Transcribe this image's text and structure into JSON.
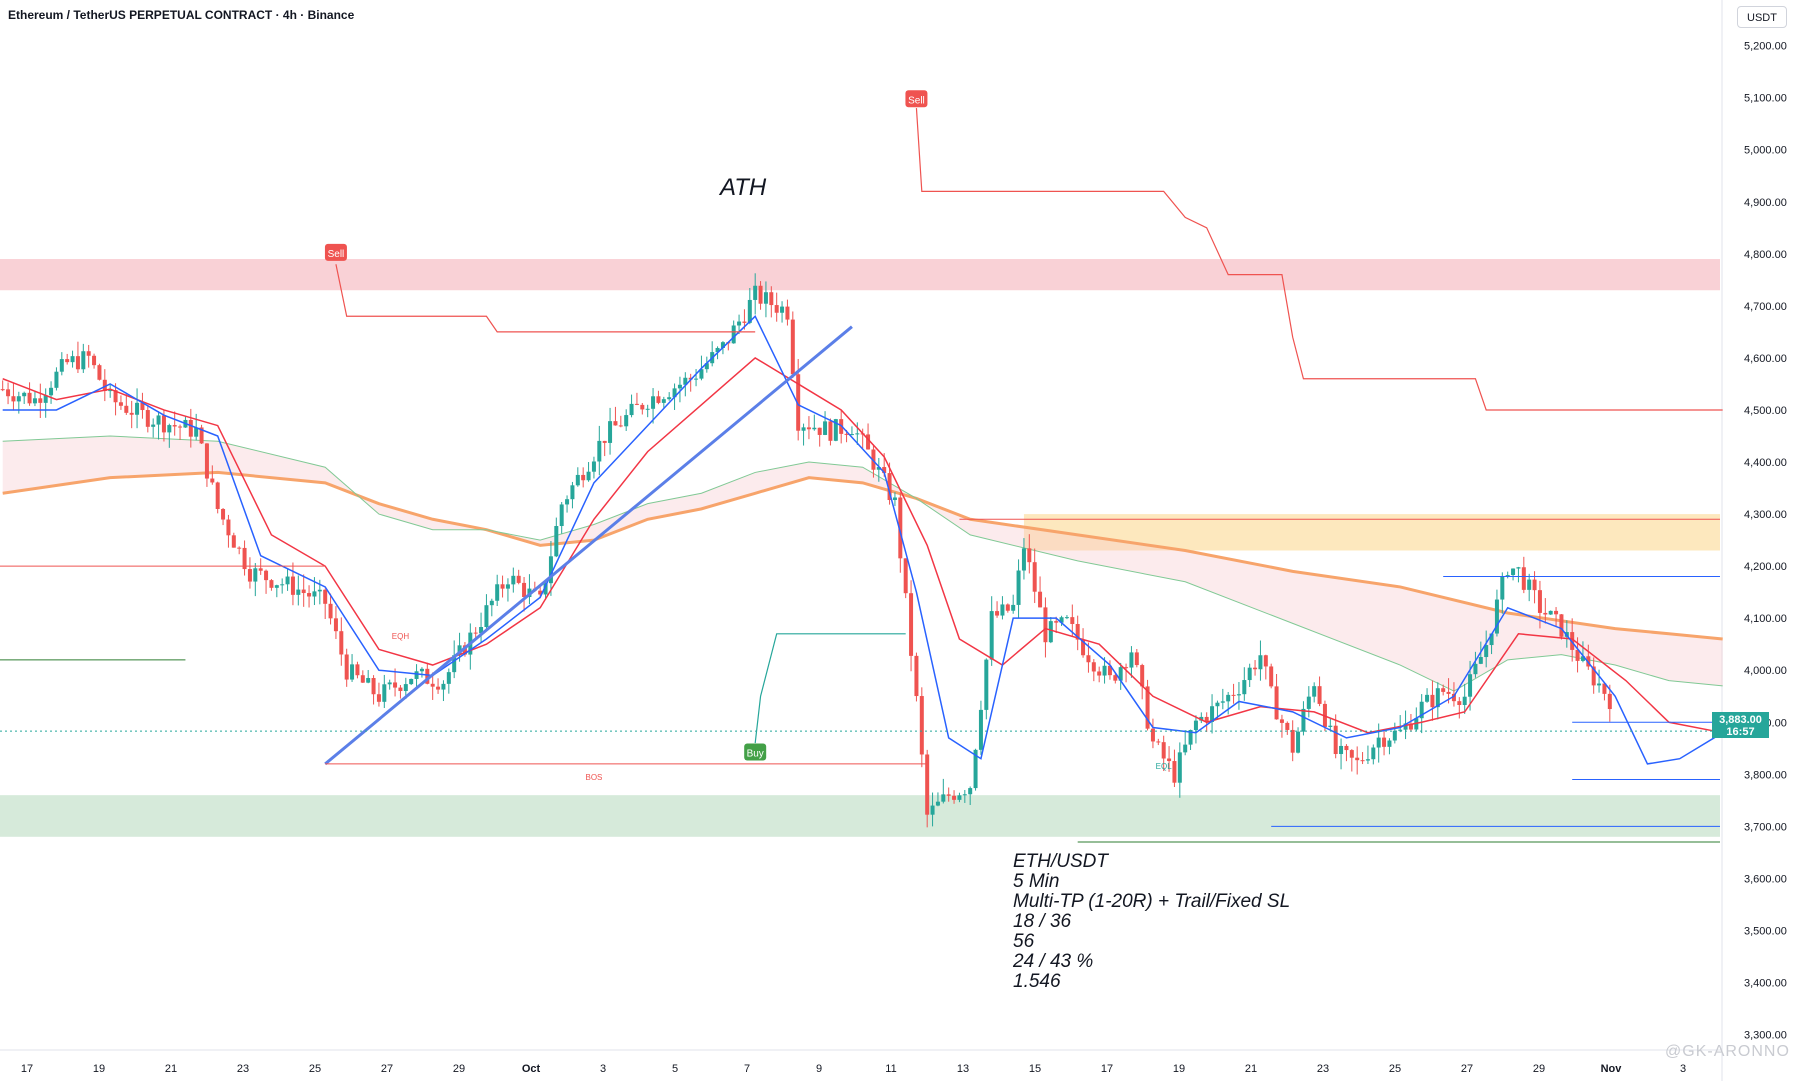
{
  "header": {
    "title": "Ethereum / TetherUS PERPETUAL CONTRACT · 4h · Binance",
    "currency": "USDT"
  },
  "annotations": {
    "ath": "ATH",
    "sell1": "Sell",
    "sell2": "Sell",
    "buy": "Buy",
    "bos": "BOS",
    "eqh": "EQH",
    "eql": "EQL"
  },
  "price_badge": {
    "price": "3,883.00",
    "time": "16:57"
  },
  "stats": {
    "line1": "ETH/USDT",
    "line2": "5 Min",
    "line3": "Multi-TP (1-20R) + Trail/Fixed SL",
    "line4": "18 / 36",
    "line5": "56",
    "line6": "24 / 43 %",
    "line7": "1.546"
  },
  "watermark": "@GK-ARONNO",
  "colors": {
    "up": "#26a69a",
    "down": "#ef5350",
    "ema_fast": "#2962ff",
    "ema_slow": "#f23645",
    "ma_long": "#f7a46b",
    "ma_green": "#81c995",
    "trendline": "#5b7fe8",
    "supply_zone": "#f8c9cf",
    "demand_zone": "#cfe6d4",
    "orange_zone": "#fde4b3"
  },
  "chart_data": {
    "type": "candlestick",
    "y_axis": {
      "ticks": [
        "5,200.00",
        "5,100.00",
        "5,000.00",
        "4,900.00",
        "4,800.00",
        "4,700.00",
        "4,600.00",
        "4,500.00",
        "4,400.00",
        "4,300.00",
        "4,200.00",
        "4,100.00",
        "4,000.00",
        "3,900.00",
        "3,800.00",
        "3,700.00",
        "3,600.00",
        "3,500.00",
        "3,400.00",
        "3,300.00"
      ],
      "ylim": [
        3280,
        5230
      ]
    },
    "x_axis": {
      "ticks": [
        "17",
        "19",
        "21",
        "23",
        "25",
        "27",
        "29",
        "Oct",
        "3",
        "5",
        "7",
        "9",
        "11",
        "13",
        "15",
        "17",
        "19",
        "21",
        "23",
        "25",
        "27",
        "29",
        "Nov",
        "3"
      ]
    },
    "trend": [
      [
        0,
        4540
      ],
      [
        6,
        4520
      ],
      [
        12,
        4590
      ],
      [
        16,
        4600
      ],
      [
        20,
        4520
      ],
      [
        26,
        4490
      ],
      [
        32,
        4470
      ],
      [
        36,
        4460
      ],
      [
        40,
        4310
      ],
      [
        46,
        4190
      ],
      [
        54,
        4160
      ],
      [
        60,
        4130
      ],
      [
        64,
        4000
      ],
      [
        70,
        3950
      ],
      [
        76,
        3990
      ],
      [
        82,
        3980
      ],
      [
        88,
        4080
      ],
      [
        94,
        4180
      ],
      [
        100,
        4130
      ],
      [
        104,
        4320
      ],
      [
        112,
        4450
      ],
      [
        120,
        4520
      ],
      [
        128,
        4560
      ],
      [
        134,
        4620
      ],
      [
        140,
        4720
      ],
      [
        146,
        4690
      ],
      [
        148,
        4480
      ],
      [
        154,
        4460
      ],
      [
        158,
        4470
      ],
      [
        162,
        4400
      ],
      [
        166,
        4320
      ],
      [
        170,
        3940
      ],
      [
        172,
        3720
      ],
      [
        176,
        3760
      ],
      [
        180,
        3780
      ],
      [
        184,
        4100
      ],
      [
        188,
        4120
      ],
      [
        190,
        4240
      ],
      [
        194,
        4070
      ],
      [
        198,
        4090
      ],
      [
        202,
        4030
      ],
      [
        206,
        3980
      ],
      [
        210,
        4040
      ],
      [
        214,
        3860
      ],
      [
        218,
        3800
      ],
      [
        222,
        3900
      ],
      [
        226,
        3930
      ],
      [
        230,
        3970
      ],
      [
        234,
        4030
      ],
      [
        236,
        3950
      ],
      [
        240,
        3850
      ],
      [
        244,
        3980
      ],
      [
        248,
        3840
      ],
      [
        252,
        3820
      ],
      [
        256,
        3870
      ],
      [
        260,
        3880
      ],
      [
        264,
        3930
      ],
      [
        268,
        3960
      ],
      [
        272,
        3950
      ],
      [
        276,
        4050
      ],
      [
        280,
        4200
      ],
      [
        282,
        4190
      ],
      [
        286,
        4120
      ],
      [
        290,
        4080
      ],
      [
        294,
        4010
      ],
      [
        298,
        3960
      ],
      [
        302,
        3900
      ],
      [
        306,
        3720
      ],
      [
        310,
        3840
      ],
      [
        314,
        3870
      ],
      [
        318,
        3880
      ],
      [
        320,
        3885
      ]
    ],
    "ema_fast": [
      [
        0,
        4500
      ],
      [
        10,
        4500
      ],
      [
        20,
        4550
      ],
      [
        30,
        4490
      ],
      [
        40,
        4450
      ],
      [
        48,
        4220
      ],
      [
        60,
        4160
      ],
      [
        70,
        4000
      ],
      [
        80,
        3990
      ],
      [
        90,
        4060
      ],
      [
        100,
        4140
      ],
      [
        110,
        4360
      ],
      [
        120,
        4470
      ],
      [
        130,
        4580
      ],
      [
        140,
        4680
      ],
      [
        148,
        4510
      ],
      [
        156,
        4470
      ],
      [
        164,
        4380
      ],
      [
        170,
        4150
      ],
      [
        176,
        3870
      ],
      [
        182,
        3830
      ],
      [
        188,
        4100
      ],
      [
        196,
        4100
      ],
      [
        206,
        4010
      ],
      [
        214,
        3890
      ],
      [
        222,
        3880
      ],
      [
        230,
        3940
      ],
      [
        240,
        3920
      ],
      [
        250,
        3870
      ],
      [
        260,
        3890
      ],
      [
        270,
        3950
      ],
      [
        280,
        4120
      ],
      [
        290,
        4080
      ],
      [
        300,
        3950
      ],
      [
        306,
        3820
      ],
      [
        312,
        3830
      ],
      [
        320,
        3880
      ]
    ],
    "ema_slow": [
      [
        0,
        4560
      ],
      [
        10,
        4520
      ],
      [
        20,
        4540
      ],
      [
        30,
        4500
      ],
      [
        40,
        4470
      ],
      [
        50,
        4260
      ],
      [
        60,
        4200
      ],
      [
        70,
        4040
      ],
      [
        80,
        4010
      ],
      [
        90,
        4050
      ],
      [
        100,
        4120
      ],
      [
        110,
        4290
      ],
      [
        120,
        4420
      ],
      [
        130,
        4510
      ],
      [
        140,
        4600
      ],
      [
        148,
        4550
      ],
      [
        156,
        4500
      ],
      [
        164,
        4410
      ],
      [
        172,
        4240
      ],
      [
        178,
        4060
      ],
      [
        186,
        4010
      ],
      [
        194,
        4080
      ],
      [
        204,
        4050
      ],
      [
        214,
        3950
      ],
      [
        224,
        3900
      ],
      [
        234,
        3930
      ],
      [
        244,
        3920
      ],
      [
        254,
        3880
      ],
      [
        264,
        3900
      ],
      [
        272,
        3920
      ],
      [
        282,
        4070
      ],
      [
        292,
        4060
      ],
      [
        302,
        3980
      ],
      [
        310,
        3900
      ],
      [
        320,
        3880
      ]
    ],
    "ma_long": [
      [
        0,
        4340
      ],
      [
        20,
        4370
      ],
      [
        40,
        4380
      ],
      [
        60,
        4360
      ],
      [
        70,
        4320
      ],
      [
        80,
        4290
      ],
      [
        90,
        4270
      ],
      [
        100,
        4240
      ],
      [
        110,
        4250
      ],
      [
        120,
        4290
      ],
      [
        130,
        4310
      ],
      [
        140,
        4340
      ],
      [
        150,
        4370
      ],
      [
        160,
        4360
      ],
      [
        170,
        4330
      ],
      [
        180,
        4290
      ],
      [
        200,
        4260
      ],
      [
        220,
        4230
      ],
      [
        240,
        4190
      ],
      [
        260,
        4160
      ],
      [
        280,
        4110
      ],
      [
        300,
        4080
      ],
      [
        310,
        4070
      ],
      [
        320,
        4060
      ]
    ],
    "ma_green": [
      [
        0,
        4440
      ],
      [
        20,
        4450
      ],
      [
        40,
        4440
      ],
      [
        60,
        4390
      ],
      [
        70,
        4300
      ],
      [
        80,
        4270
      ],
      [
        90,
        4270
      ],
      [
        100,
        4250
      ],
      [
        110,
        4280
      ],
      [
        120,
        4320
      ],
      [
        130,
        4340
      ],
      [
        140,
        4380
      ],
      [
        150,
        4400
      ],
      [
        160,
        4390
      ],
      [
        170,
        4330
      ],
      [
        180,
        4260
      ],
      [
        200,
        4210
      ],
      [
        220,
        4170
      ],
      [
        240,
        4090
      ],
      [
        260,
        4010
      ],
      [
        270,
        3960
      ],
      [
        280,
        4020
      ],
      [
        290,
        4030
      ],
      [
        300,
        4010
      ],
      [
        310,
        3980
      ],
      [
        320,
        3970
      ]
    ],
    "sell_trail_1": [
      [
        62,
        4780
      ],
      [
        64,
        4680
      ],
      [
        90,
        4680
      ],
      [
        92,
        4650
      ],
      [
        140,
        4650
      ]
    ],
    "sell_trail_2": [
      [
        170,
        5080
      ],
      [
        171,
        4920
      ],
      [
        216,
        4920
      ],
      [
        220,
        4870
      ],
      [
        224,
        4850
      ],
      [
        228,
        4760
      ],
      [
        238,
        4760
      ],
      [
        240,
        4640
      ],
      [
        242,
        4560
      ],
      [
        274,
        4560
      ],
      [
        276,
        4500
      ],
      [
        320,
        4500
      ]
    ],
    "buy_trail": [
      [
        140,
        3860
      ],
      [
        141,
        3950
      ],
      [
        144,
        4070
      ],
      [
        168,
        4070
      ]
    ],
    "zones": [
      {
        "kind": "supply",
        "x0": 0,
        "x1": 320,
        "y0": 4730,
        "y1": 4790
      },
      {
        "kind": "demand",
        "x0": 0,
        "x1": 320,
        "y0": 3680,
        "y1": 3760
      },
      {
        "kind": "orange",
        "x0": 190,
        "x1": 320,
        "y0": 4230,
        "y1": 4300
      }
    ]
  }
}
